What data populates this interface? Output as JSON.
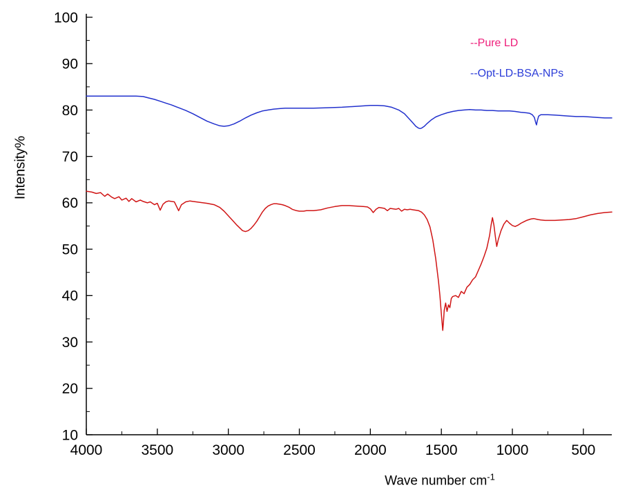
{
  "chart_data": {
    "type": "line",
    "title": "",
    "xlabel": "Wave number cm⁻¹",
    "xlabel_base": "Wave number cm",
    "xlabel_exp": "-1",
    "ylabel": "Intensity%",
    "xlim": [
      4000,
      300
    ],
    "ylim": [
      10,
      100
    ],
    "x_reversed": true,
    "xticks": [
      4000,
      3500,
      3000,
      2500,
      2000,
      1500,
      1000,
      500
    ],
    "xminor_step": 250,
    "yticks": [
      10,
      20,
      30,
      40,
      50,
      60,
      70,
      80,
      90,
      100
    ],
    "yminor_step": 5,
    "grid": false,
    "legend_position": "top-right",
    "axis_color": "#000000",
    "series": [
      {
        "name": "Pure LD",
        "legend_label": "--Pure LD",
        "color": "#d01414",
        "legend_color": "#ee1d7a",
        "points": [
          [
            4000,
            62.5
          ],
          [
            3960,
            62.3
          ],
          [
            3930,
            62.0
          ],
          [
            3900,
            62.2
          ],
          [
            3870,
            61.4
          ],
          [
            3850,
            61.9
          ],
          [
            3820,
            61.2
          ],
          [
            3800,
            60.9
          ],
          [
            3770,
            61.3
          ],
          [
            3750,
            60.6
          ],
          [
            3720,
            61.0
          ],
          [
            3700,
            60.3
          ],
          [
            3680,
            60.9
          ],
          [
            3650,
            60.2
          ],
          [
            3620,
            60.6
          ],
          [
            3600,
            60.3
          ],
          [
            3570,
            60.0
          ],
          [
            3550,
            60.2
          ],
          [
            3520,
            59.6
          ],
          [
            3500,
            59.9
          ],
          [
            3480,
            58.4
          ],
          [
            3460,
            59.7
          ],
          [
            3440,
            60.2
          ],
          [
            3420,
            60.4
          ],
          [
            3400,
            60.3
          ],
          [
            3380,
            60.2
          ],
          [
            3350,
            58.3
          ],
          [
            3330,
            59.6
          ],
          [
            3300,
            60.2
          ],
          [
            3270,
            60.4
          ],
          [
            3250,
            60.3
          ],
          [
            3200,
            60.1
          ],
          [
            3150,
            59.9
          ],
          [
            3100,
            59.6
          ],
          [
            3060,
            59.0
          ],
          [
            3030,
            58.2
          ],
          [
            3000,
            57.2
          ],
          [
            2970,
            56.2
          ],
          [
            2940,
            55.2
          ],
          [
            2920,
            54.6
          ],
          [
            2900,
            54.0
          ],
          [
            2880,
            53.8
          ],
          [
            2860,
            54.0
          ],
          [
            2840,
            54.5
          ],
          [
            2820,
            55.2
          ],
          [
            2800,
            56.0
          ],
          [
            2780,
            57.0
          ],
          [
            2760,
            58.0
          ],
          [
            2740,
            58.8
          ],
          [
            2720,
            59.3
          ],
          [
            2700,
            59.6
          ],
          [
            2680,
            59.8
          ],
          [
            2660,
            59.8
          ],
          [
            2640,
            59.7
          ],
          [
            2620,
            59.6
          ],
          [
            2600,
            59.4
          ],
          [
            2570,
            59.0
          ],
          [
            2550,
            58.6
          ],
          [
            2520,
            58.3
          ],
          [
            2500,
            58.2
          ],
          [
            2470,
            58.2
          ],
          [
            2450,
            58.3
          ],
          [
            2400,
            58.3
          ],
          [
            2350,
            58.5
          ],
          [
            2300,
            58.9
          ],
          [
            2250,
            59.2
          ],
          [
            2200,
            59.4
          ],
          [
            2150,
            59.4
          ],
          [
            2100,
            59.3
          ],
          [
            2050,
            59.2
          ],
          [
            2020,
            59.1
          ],
          [
            2000,
            58.7
          ],
          [
            1980,
            57.9
          ],
          [
            1960,
            58.6
          ],
          [
            1940,
            59.0
          ],
          [
            1920,
            58.9
          ],
          [
            1900,
            58.8
          ],
          [
            1880,
            58.3
          ],
          [
            1860,
            58.8
          ],
          [
            1840,
            58.7
          ],
          [
            1820,
            58.6
          ],
          [
            1800,
            58.8
          ],
          [
            1780,
            58.2
          ],
          [
            1760,
            58.6
          ],
          [
            1740,
            58.5
          ],
          [
            1720,
            58.6
          ],
          [
            1700,
            58.5
          ],
          [
            1680,
            58.4
          ],
          [
            1660,
            58.3
          ],
          [
            1640,
            58.0
          ],
          [
            1620,
            57.4
          ],
          [
            1600,
            56.4
          ],
          [
            1580,
            54.8
          ],
          [
            1560,
            52.0
          ],
          [
            1540,
            48.0
          ],
          [
            1520,
            43.0
          ],
          [
            1510,
            40.0
          ],
          [
            1500,
            36.0
          ],
          [
            1490,
            32.5
          ],
          [
            1485,
            34.5
          ],
          [
            1480,
            36.8
          ],
          [
            1470,
            38.4
          ],
          [
            1460,
            36.6
          ],
          [
            1450,
            38.0
          ],
          [
            1440,
            37.4
          ],
          [
            1430,
            39.4
          ],
          [
            1420,
            39.8
          ],
          [
            1400,
            40.0
          ],
          [
            1380,
            39.6
          ],
          [
            1360,
            40.9
          ],
          [
            1340,
            40.4
          ],
          [
            1320,
            41.8
          ],
          [
            1300,
            42.4
          ],
          [
            1280,
            43.4
          ],
          [
            1260,
            44.0
          ],
          [
            1240,
            45.4
          ],
          [
            1220,
            46.8
          ],
          [
            1200,
            48.4
          ],
          [
            1180,
            50.2
          ],
          [
            1160,
            53.0
          ],
          [
            1150,
            55.2
          ],
          [
            1140,
            56.8
          ],
          [
            1130,
            55.2
          ],
          [
            1120,
            52.8
          ],
          [
            1110,
            50.6
          ],
          [
            1100,
            52.0
          ],
          [
            1080,
            54.0
          ],
          [
            1060,
            55.4
          ],
          [
            1040,
            56.2
          ],
          [
            1020,
            55.6
          ],
          [
            1000,
            55.1
          ],
          [
            980,
            54.9
          ],
          [
            960,
            55.2
          ],
          [
            940,
            55.6
          ],
          [
            920,
            55.9
          ],
          [
            900,
            56.2
          ],
          [
            870,
            56.5
          ],
          [
            850,
            56.6
          ],
          [
            820,
            56.4
          ],
          [
            800,
            56.3
          ],
          [
            770,
            56.2
          ],
          [
            750,
            56.2
          ],
          [
            700,
            56.2
          ],
          [
            650,
            56.3
          ],
          [
            600,
            56.4
          ],
          [
            550,
            56.6
          ],
          [
            500,
            57.0
          ],
          [
            450,
            57.4
          ],
          [
            400,
            57.7
          ],
          [
            350,
            57.9
          ],
          [
            300,
            58.0
          ]
        ]
      },
      {
        "name": "Opt-LD-BSA-NPs",
        "legend_label": "--Opt-LD-BSA-NPs",
        "color": "#2130cd",
        "legend_color": "#2b3cd8",
        "points": [
          [
            4000,
            83.0
          ],
          [
            3900,
            83.0
          ],
          [
            3800,
            83.0
          ],
          [
            3700,
            83.0
          ],
          [
            3650,
            83.0
          ],
          [
            3600,
            82.9
          ],
          [
            3560,
            82.6
          ],
          [
            3520,
            82.3
          ],
          [
            3480,
            81.9
          ],
          [
            3440,
            81.5
          ],
          [
            3400,
            81.1
          ],
          [
            3350,
            80.5
          ],
          [
            3300,
            79.9
          ],
          [
            3250,
            79.2
          ],
          [
            3200,
            78.4
          ],
          [
            3150,
            77.6
          ],
          [
            3100,
            77.0
          ],
          [
            3060,
            76.6
          ],
          [
            3030,
            76.5
          ],
          [
            3000,
            76.6
          ],
          [
            2960,
            77.0
          ],
          [
            2920,
            77.6
          ],
          [
            2880,
            78.3
          ],
          [
            2840,
            78.9
          ],
          [
            2800,
            79.4
          ],
          [
            2760,
            79.8
          ],
          [
            2720,
            80.0
          ],
          [
            2680,
            80.2
          ],
          [
            2640,
            80.3
          ],
          [
            2600,
            80.4
          ],
          [
            2500,
            80.4
          ],
          [
            2400,
            80.4
          ],
          [
            2300,
            80.5
          ],
          [
            2200,
            80.6
          ],
          [
            2100,
            80.8
          ],
          [
            2000,
            81.0
          ],
          [
            1950,
            81.0
          ],
          [
            1900,
            80.9
          ],
          [
            1850,
            80.6
          ],
          [
            1800,
            80.0
          ],
          [
            1760,
            79.2
          ],
          [
            1730,
            78.2
          ],
          [
            1700,
            77.2
          ],
          [
            1680,
            76.5
          ],
          [
            1660,
            76.1
          ],
          [
            1650,
            76.0
          ],
          [
            1640,
            76.1
          ],
          [
            1620,
            76.5
          ],
          [
            1600,
            77.1
          ],
          [
            1570,
            77.9
          ],
          [
            1540,
            78.5
          ],
          [
            1500,
            79.0
          ],
          [
            1460,
            79.4
          ],
          [
            1420,
            79.7
          ],
          [
            1380,
            79.9
          ],
          [
            1340,
            80.0
          ],
          [
            1300,
            80.1
          ],
          [
            1260,
            80.0
          ],
          [
            1220,
            80.0
          ],
          [
            1180,
            79.9
          ],
          [
            1140,
            79.9
          ],
          [
            1100,
            79.8
          ],
          [
            1060,
            79.8
          ],
          [
            1020,
            79.8
          ],
          [
            980,
            79.7
          ],
          [
            940,
            79.5
          ],
          [
            900,
            79.4
          ],
          [
            880,
            79.3
          ],
          [
            860,
            79.0
          ],
          [
            845,
            78.4
          ],
          [
            835,
            77.2
          ],
          [
            830,
            76.8
          ],
          [
            825,
            77.6
          ],
          [
            815,
            78.7
          ],
          [
            800,
            79.0
          ],
          [
            780,
            79.0
          ],
          [
            750,
            79.0
          ],
          [
            700,
            78.9
          ],
          [
            650,
            78.8
          ],
          [
            600,
            78.7
          ],
          [
            550,
            78.6
          ],
          [
            500,
            78.6
          ],
          [
            450,
            78.5
          ],
          [
            400,
            78.4
          ],
          [
            350,
            78.3
          ],
          [
            300,
            78.3
          ]
        ]
      }
    ]
  }
}
